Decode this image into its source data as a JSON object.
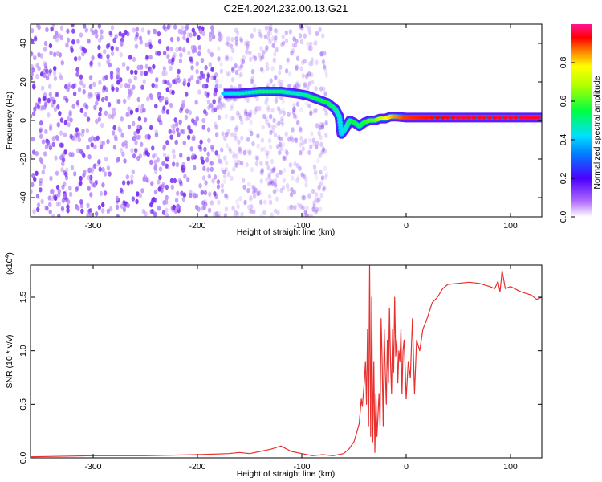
{
  "page_title": "C2E4.2024.232.00.13.G21",
  "chart_data": [
    {
      "type": "heatmap",
      "title": "C2E4.2024.232.00.13.G21",
      "xlabel": "Height of straight line (km)",
      "ylabel": "Frequency (Hz)",
      "xlim": [
        -360,
        130
      ],
      "ylim": [
        -50,
        50
      ],
      "xticks": [
        -300,
        -200,
        -100,
        0,
        100
      ],
      "xtick_labels": [
        "-300",
        "-200",
        "-100",
        "0",
        "100"
      ],
      "yticks": [
        -40,
        -20,
        0,
        20,
        40
      ],
      "ytick_labels": [
        "-40",
        "-20",
        "0",
        "20",
        "40"
      ],
      "colorbar": {
        "label": "Normalized spectral amplitude",
        "range": [
          0,
          1
        ],
        "ticks": [
          0.0,
          0.2,
          0.4,
          0.6,
          0.8
        ],
        "tick_labels": [
          "0.0",
          "0.2",
          "0.4",
          "0.6",
          "0.8"
        ]
      },
      "noise_region": {
        "x_range": [
          -360,
          -75
        ],
        "amplitude": 0.15
      },
      "signal_track": {
        "x": [
          -175,
          -160,
          -140,
          -120,
          -105,
          -95,
          -85,
          -75,
          -68,
          -64,
          -62,
          -58,
          -54,
          -50,
          -45,
          -40,
          -35,
          -30,
          -25,
          -20,
          -15,
          -10,
          0,
          20,
          50,
          80,
          110,
          130
        ],
        "y": [
          14,
          14,
          15,
          15,
          14,
          13,
          11,
          9,
          6,
          2,
          -7,
          -4,
          0,
          -1,
          -3,
          -1,
          0,
          0,
          1,
          1,
          2,
          2,
          1.5,
          1.5,
          1.5,
          1.5,
          1.5,
          1.5
        ],
        "amplitude": [
          0.4,
          0.45,
          0.5,
          0.5,
          0.45,
          0.5,
          0.55,
          0.55,
          0.5,
          0.45,
          0.4,
          0.45,
          0.5,
          0.55,
          0.5,
          0.55,
          0.6,
          0.6,
          0.7,
          0.75,
          0.8,
          0.85,
          0.9,
          0.92,
          0.95,
          0.95,
          0.95,
          0.95
        ]
      },
      "colors": {
        "noise": "#7a2ff0",
        "low": "#4b00ff"
      }
    },
    {
      "type": "line",
      "xlabel": "Height of straight line (km)",
      "ylabel": "SNR (10 * v/v)",
      "scale_label": "(x10",
      "scale_exponent": "4",
      "scale_suffix": ")",
      "xlim": [
        -360,
        130
      ],
      "ylim": [
        0,
        1.8
      ],
      "xticks": [
        -300,
        -200,
        -100,
        0,
        100
      ],
      "xtick_labels": [
        "-300",
        "-200",
        "-100",
        "0",
        "100"
      ],
      "yticks": [
        0.0,
        0.5,
        1.0,
        1.5
      ],
      "ytick_labels": [
        "0.0",
        "0.5",
        "1.0",
        "1.5"
      ],
      "series": [
        {
          "color": "#e8302e",
          "x": [
            -360,
            -300,
            -250,
            -200,
            -170,
            -160,
            -150,
            -140,
            -130,
            -120,
            -110,
            -100,
            -90,
            -80,
            -70,
            -60,
            -55,
            -50,
            -47,
            -45,
            -43,
            -42,
            -40,
            -39,
            -38,
            -37,
            -36,
            -35,
            -34,
            -33,
            -32,
            -31,
            -30,
            -29,
            -28,
            -27,
            -26,
            -25,
            -24,
            -23,
            -22,
            -21,
            -20,
            -19,
            -18,
            -17,
            -16,
            -15,
            -14,
            -13,
            -12,
            -11,
            -10,
            -9,
            -8,
            -7,
            -6,
            -5,
            -4,
            -3,
            -2,
            -1,
            0,
            2,
            4,
            6,
            8,
            10,
            13,
            16,
            20,
            25,
            30,
            35,
            40,
            50,
            60,
            70,
            80,
            85,
            88,
            90,
            92,
            95,
            100,
            110,
            120,
            125,
            130
          ],
          "y": [
            0.01,
            0.02,
            0.02,
            0.03,
            0.04,
            0.05,
            0.04,
            0.06,
            0.08,
            0.11,
            0.06,
            0.04,
            0.02,
            0.03,
            0.02,
            0.04,
            0.08,
            0.15,
            0.25,
            0.32,
            0.55,
            0.48,
            0.72,
            0.9,
            0.5,
            1.2,
            0.3,
            1.8,
            0.2,
            1.5,
            0.15,
            0.9,
            0.05,
            0.6,
            0.2,
            0.4,
            0.6,
            0.3,
            1.3,
            0.9,
            0.3,
            1.2,
            0.8,
            0.5,
            1.1,
            0.7,
            1.4,
            0.9,
            0.6,
            1.2,
            0.8,
            1.5,
            0.95,
            1.1,
            0.7,
            1.0,
            0.9,
            1.2,
            0.6,
            1.0,
            1.1,
            0.85,
            0.55,
            0.9,
            0.75,
            1.3,
            0.6,
            1.1,
            1.0,
            1.2,
            1.3,
            1.45,
            1.5,
            1.58,
            1.62,
            1.63,
            1.64,
            1.63,
            1.6,
            1.58,
            1.65,
            1.55,
            1.75,
            1.58,
            1.6,
            1.55,
            1.52,
            1.48,
            1.5
          ]
        }
      ]
    }
  ]
}
